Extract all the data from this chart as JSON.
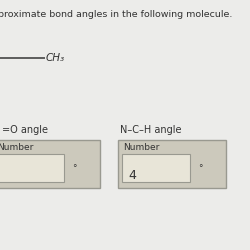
{
  "title": "proximate bond angles in the following molecule.",
  "ch3_text": "CH₃",
  "angle1_label": "=O angle",
  "angle2_label": "N–C–H angle",
  "box1_label": "Number",
  "box1_value": "",
  "box2_label": "Number",
  "box2_value": "4",
  "degree_symbol": "°",
  "bg_color": "#e8e6e0",
  "box_bg": "#ccc9bc",
  "inner_bg": "#e8e5d8",
  "border_color": "#999990",
  "text_color": "#333333",
  "title_fontsize": 6.8,
  "label_fontsize": 7.0,
  "number_label_fontsize": 6.5,
  "value_fontsize": 9
}
